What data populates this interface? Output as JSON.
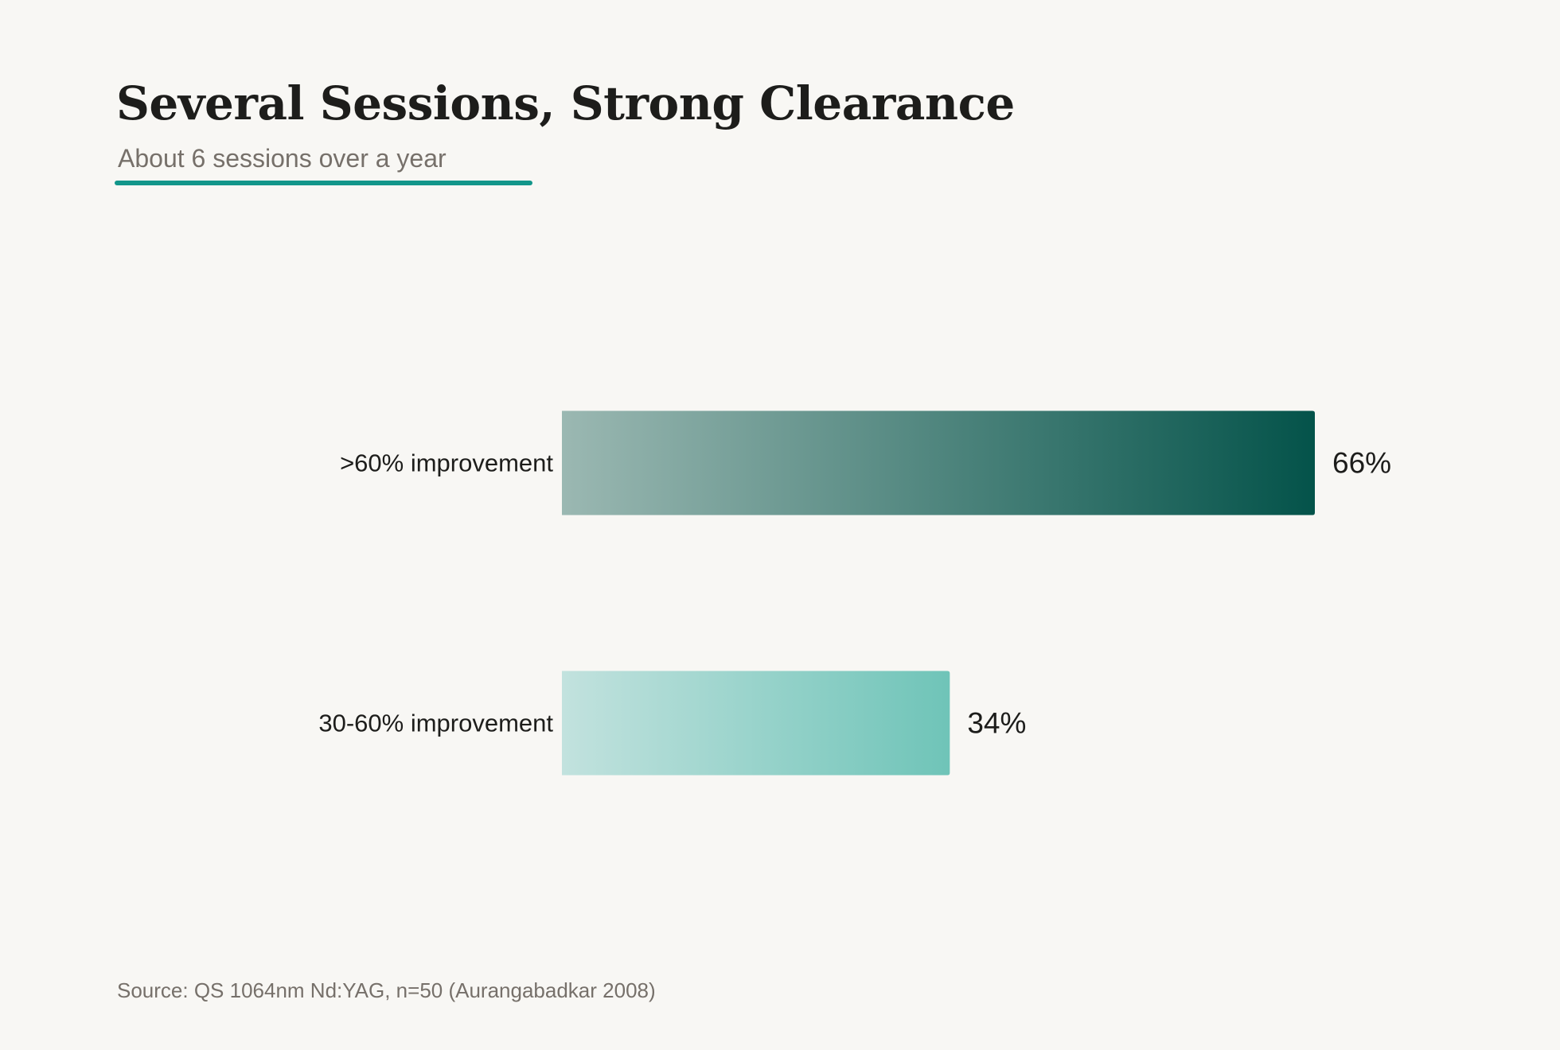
{
  "header": {
    "title": "Several Sessions, Strong Clearance",
    "subtitle": "About 6 sessions over a year"
  },
  "footer": {
    "source": "Source: QS 1064nm Nd:YAG, n=50 (Aurangabadkar 2008)"
  },
  "colors": {
    "accent": "#12968a",
    "bar1_start": "#9bb8b2",
    "bar1_end": "#04534a",
    "bar2_start": "#c2e2de",
    "bar2_end": "#6fc4b8"
  },
  "chart_data": {
    "type": "bar",
    "orientation": "horizontal",
    "title": "Several Sessions, Strong Clearance",
    "subtitle": "About 6 sessions over a year",
    "categories": [
      ">60% improvement",
      "30-60% improvement"
    ],
    "values": [
      66,
      34
    ],
    "value_labels": [
      "66%",
      "34%"
    ],
    "unit": "%",
    "xlim": [
      0,
      66
    ],
    "grid": false,
    "legend": "none"
  }
}
